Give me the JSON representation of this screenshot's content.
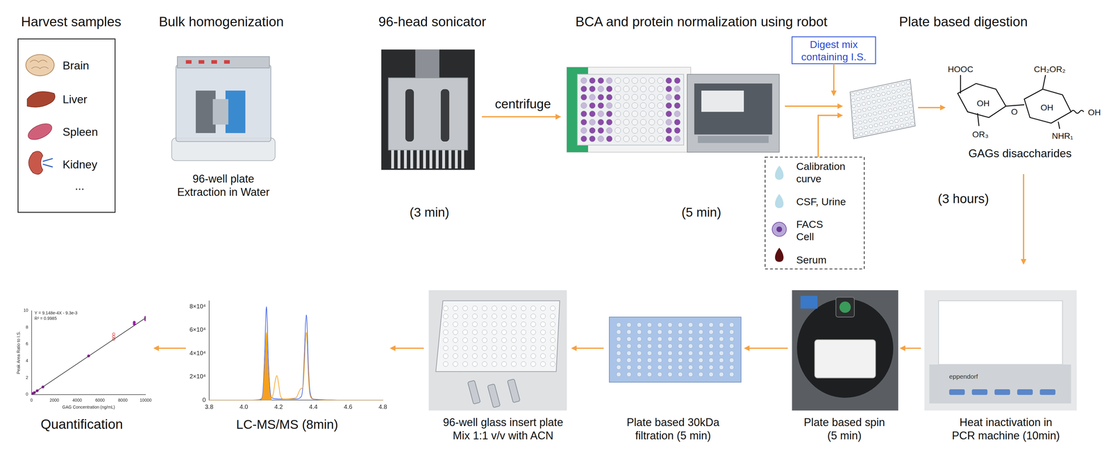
{
  "diagram": {
    "harvest": {
      "title": "Harvest samples",
      "organs": [
        "Brain",
        "Liver",
        "Spleen",
        "Kidney",
        "..."
      ]
    },
    "homogenization": {
      "title": "Bulk homogenization",
      "caption": [
        "96-well plate",
        "Extraction in Water"
      ]
    },
    "sonication": {
      "title": "96-head sonicator",
      "time": "(3 min)"
    },
    "centrifuge": "centrifuge",
    "normalization": {
      "title": "BCA and protein normalization using robot",
      "time": "(5 min)"
    },
    "digestion": {
      "title": "Plate based digestion",
      "digest_mix": [
        "Digest mix",
        "containing I.S."
      ],
      "time": "(3 hours)",
      "product": "GAGs disaccharides",
      "structure_labels": [
        "HOOC",
        "OH",
        "OR₃",
        "O",
        "CH₂OR₂",
        "OH",
        "NHR₁",
        "OH"
      ]
    },
    "samples": [
      [
        "Calibration",
        "curve"
      ],
      [
        "CSF, Urine"
      ],
      [
        "FACS",
        "Cell"
      ],
      [
        "Serum"
      ]
    ],
    "heat_inactivation": {
      "caption": [
        "Heat inactivation in",
        "PCR machine (10min)"
      ],
      "device_label": "eppendorf"
    },
    "spin": {
      "caption": [
        "Plate based spin",
        "(5 min)"
      ]
    },
    "filtration": {
      "caption": [
        "Plate based 30kDa",
        "filtration (5 min)"
      ]
    },
    "glass_plate": {
      "caption": [
        "96-well glass insert plate",
        "Mix 1:1 v/v with ACN"
      ]
    },
    "lcms": {
      "caption": "LC-MS/MS (8min)"
    },
    "quantification": {
      "caption": "Quantification"
    }
  },
  "chart_data": [
    {
      "type": "scatter",
      "xlabel": "GAG Concentration (ng/mL)",
      "ylabel": "Peak Area Ratio to I.S.",
      "annotations": [
        "Y = 9.148e-4X - 9.3e-3",
        "R² = 0.9985"
      ],
      "xlim": [
        0,
        10000
      ],
      "xticks": [
        0,
        2000,
        4000,
        6000,
        8000,
        10000
      ],
      "ylim": [
        0,
        10
      ],
      "yticks": [
        0,
        2,
        4,
        6,
        8,
        10
      ],
      "grid": false,
      "series": [
        {
          "type": "line",
          "color": "#333333",
          "line_style": "solid",
          "x": [
            0,
            10000
          ],
          "values": [
            0,
            9.14
          ]
        },
        {
          "type": "scatter",
          "color": "#a020b0",
          "marker": "circle",
          "x": [
            20,
            60,
            120,
            250,
            500,
            1000,
            5000,
            9000,
            9000,
            10000,
            10000
          ],
          "values": [
            0.05,
            0.08,
            0.12,
            0.22,
            0.45,
            0.9,
            4.6,
            8.4,
            8.6,
            8.9,
            9.2
          ]
        },
        {
          "type": "scatter",
          "color": "#e03030",
          "marker": "open_circle",
          "x": [
            7200,
            7200,
            7200
          ],
          "values": [
            6.6,
            6.9,
            7.2
          ]
        }
      ]
    },
    {
      "type": "line",
      "xlim": [
        3.8,
        4.8
      ],
      "xticks": [
        3.8,
        {
          "value": 4,
          "label": "4.0"
        },
        4.2,
        4.4,
        4.6,
        4.8
      ],
      "ylim": [
        0,
        85000
      ],
      "yticks": [
        0,
        {
          "value": 20000,
          "label": "2×10⁴"
        },
        {
          "value": 40000,
          "label": "4×10⁴"
        },
        {
          "value": 60000,
          "label": "6×10⁴"
        },
        {
          "value": 80000,
          "label": "8×10⁴"
        }
      ],
      "grid": false,
      "series": [
        {
          "type": "area",
          "color": "#f5a020",
          "x": [
            4.1,
            4.11,
            4.12,
            4.125,
            4.13,
            4.135,
            4.14,
            4.15,
            4.16
          ],
          "values": [
            500,
            5000,
            28000,
            46000,
            58000,
            45000,
            26000,
            6000,
            2000
          ]
        },
        {
          "type": "line",
          "color": "#f5a020",
          "line_style": "solid",
          "x": [
            3.8,
            4.05,
            4.1,
            4.11,
            4.12,
            4.125,
            4.13,
            4.135,
            4.14,
            4.15,
            4.16,
            4.17,
            4.18,
            4.19,
            4.2,
            4.21,
            4.23,
            4.3,
            4.32,
            4.33,
            4.34,
            4.35,
            4.355,
            4.36,
            4.365,
            4.37,
            4.38,
            4.4,
            4.6,
            4.8
          ],
          "values": [
            0,
            0,
            500,
            5000,
            28000,
            46000,
            58000,
            45000,
            26000,
            6000,
            2000,
            6000,
            16000,
            21000,
            14000,
            4000,
            1000,
            2000,
            8000,
            10000,
            11000,
            35000,
            52000,
            58000,
            45000,
            25000,
            5000,
            800,
            0,
            0
          ]
        },
        {
          "type": "line",
          "color": "#4060e8",
          "line_style": "solid",
          "x": [
            3.8,
            4.05,
            4.1,
            4.11,
            4.12,
            4.125,
            4.13,
            4.135,
            4.14,
            4.15,
            4.16,
            4.2,
            4.3,
            4.33,
            4.34,
            4.35,
            4.355,
            4.36,
            4.365,
            4.37,
            4.38,
            4.4,
            4.6,
            4.8
          ],
          "values": [
            0,
            0,
            1000,
            8000,
            40000,
            65000,
            80000,
            65000,
            38000,
            10000,
            2000,
            1000,
            1000,
            3000,
            12000,
            45000,
            65000,
            73000,
            60000,
            35000,
            8000,
            1000,
            0,
            0
          ]
        }
      ]
    }
  ]
}
